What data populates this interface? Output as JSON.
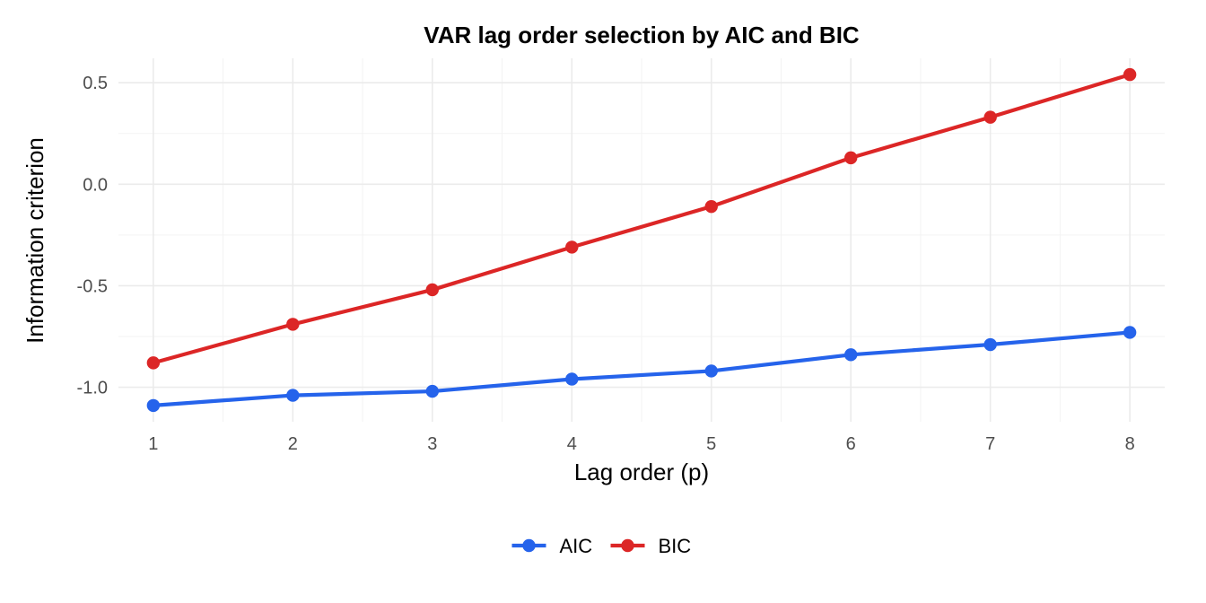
{
  "chart_data": {
    "type": "line",
    "title": "VAR lag order selection by AIC and BIC",
    "xlabel": "Lag order (p)",
    "ylabel": "Information criterion",
    "x": [
      1,
      2,
      3,
      4,
      5,
      6,
      7,
      8
    ],
    "x_ticks": [
      "1",
      "2",
      "3",
      "4",
      "5",
      "6",
      "7",
      "8"
    ],
    "y_ticks": [
      0.5,
      0.0,
      -0.5,
      -1.0
    ],
    "y_tick_labels": [
      "0.5",
      "0.0",
      "-0.5",
      "-1.0"
    ],
    "xlim": [
      0.75,
      8.25
    ],
    "ylim": [
      -1.17,
      0.62
    ],
    "grid": true,
    "legend_position": "bottom",
    "series": [
      {
        "name": "AIC",
        "color": "#2563eb",
        "values": [
          -1.09,
          -1.04,
          -1.02,
          -0.96,
          -0.92,
          -0.84,
          -0.79,
          -0.73
        ]
      },
      {
        "name": "BIC",
        "color": "#dc2626",
        "values": [
          -0.88,
          -0.69,
          -0.52,
          -0.31,
          -0.11,
          0.13,
          0.33,
          0.54
        ]
      }
    ]
  }
}
